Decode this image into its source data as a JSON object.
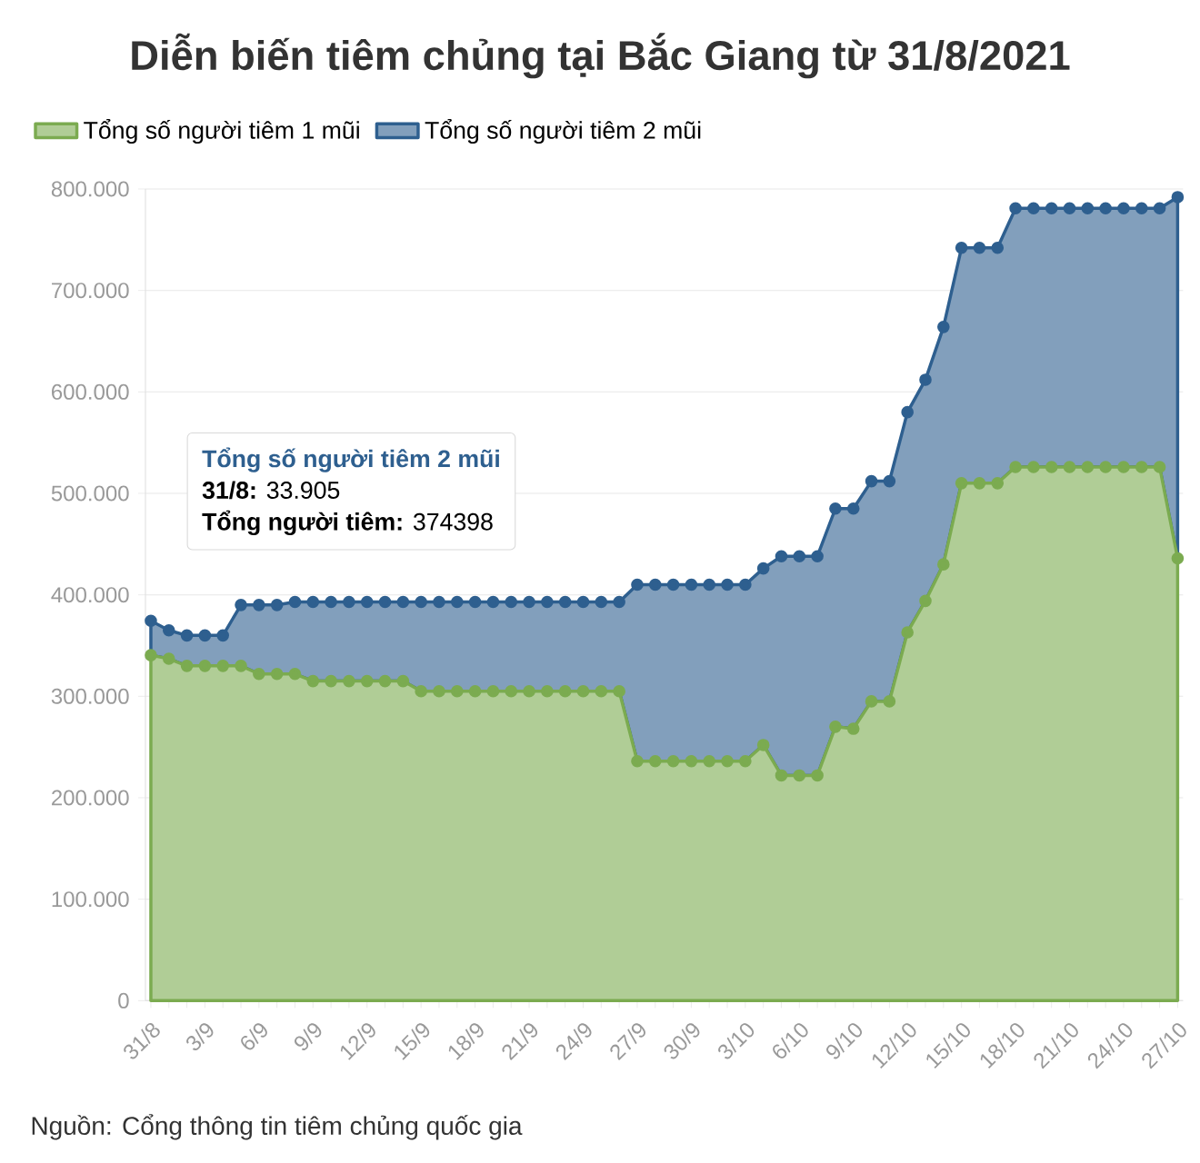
{
  "chart_data": {
    "type": "area",
    "title": "Diễn biến tiêm chủng tại Bắc Giang từ 31/8/2021",
    "categories": [
      "31/8",
      null,
      null,
      "3/9",
      null,
      null,
      "6/9",
      null,
      null,
      "9/9",
      null,
      null,
      "12/9",
      null,
      null,
      "15/9",
      null,
      null,
      "18/9",
      null,
      null,
      "21/9",
      null,
      null,
      "24/9",
      null,
      null,
      "27/9",
      null,
      null,
      "30/9",
      null,
      null,
      "3/10",
      null,
      null,
      "6/10",
      null,
      null,
      "9/10",
      null,
      null,
      "12/10",
      null,
      null,
      "15/10",
      null,
      null,
      "18/10",
      null,
      null,
      "21/10",
      null,
      null,
      "24/10",
      null,
      null,
      "27/10"
    ],
    "stacked": true,
    "series": [
      {
        "name": "Tổng số người tiêm 1 mũi",
        "color": "#7bab50",
        "values": [
          340493,
          337000,
          330000,
          330000,
          330000,
          330000,
          322000,
          322000,
          322000,
          315000,
          315000,
          315000,
          315000,
          315000,
          315000,
          305000,
          305000,
          305000,
          305000,
          305000,
          305000,
          305000,
          305000,
          305000,
          305000,
          305000,
          305000,
          236000,
          236000,
          236000,
          236000,
          236000,
          236000,
          236000,
          252000,
          222000,
          222000,
          222000,
          270000,
          268000,
          295000,
          295000,
          363000,
          394000,
          430000,
          510000,
          510000,
          510000,
          526000,
          526000,
          526000,
          526000,
          526000,
          526000,
          526000,
          526000,
          526000,
          436000
        ]
      },
      {
        "name": "Tổng số người tiêm 2 mũi",
        "color": "#2e5f8f",
        "values": [
          33905,
          28000,
          30000,
          30000,
          30000,
          60000,
          68000,
          68000,
          71000,
          78000,
          78000,
          78000,
          78000,
          78000,
          78000,
          88000,
          88000,
          88000,
          88000,
          88000,
          88000,
          88000,
          88000,
          88000,
          88000,
          88000,
          88000,
          174000,
          174000,
          174000,
          174000,
          174000,
          174000,
          174000,
          174000,
          216000,
          216000,
          216000,
          215000,
          217000,
          217000,
          217000,
          217000,
          218000,
          234000,
          232000,
          232000,
          232000,
          255000,
          255000,
          255000,
          255000,
          255000,
          255000,
          255000,
          255000,
          255000,
          356000
        ]
      }
    ],
    "ylim": [
      0,
      800000
    ],
    "yticks": [
      {
        "value": 0,
        "label": "0"
      },
      {
        "value": 100000,
        "label": "100.000"
      },
      {
        "value": 200000,
        "label": "200.000"
      },
      {
        "value": 300000,
        "label": "300.000"
      },
      {
        "value": 400000,
        "label": "400.000"
      },
      {
        "value": 500000,
        "label": "500.000"
      },
      {
        "value": 600000,
        "label": "600.000"
      },
      {
        "value": 700000,
        "label": "700.000"
      },
      {
        "value": 800000,
        "label": "800.000"
      }
    ],
    "grid": "y",
    "legend": "top left",
    "marker": "circle",
    "line_style": "solid",
    "annotations": [
      "Tổng số người tiêm 2 mũi",
      "**31/8:** 33.905",
      "**Tổng người tiêm:** 374398",
      "Nguồn: Cổng thông tin tiêm chủng quốc gia"
    ]
  }
}
